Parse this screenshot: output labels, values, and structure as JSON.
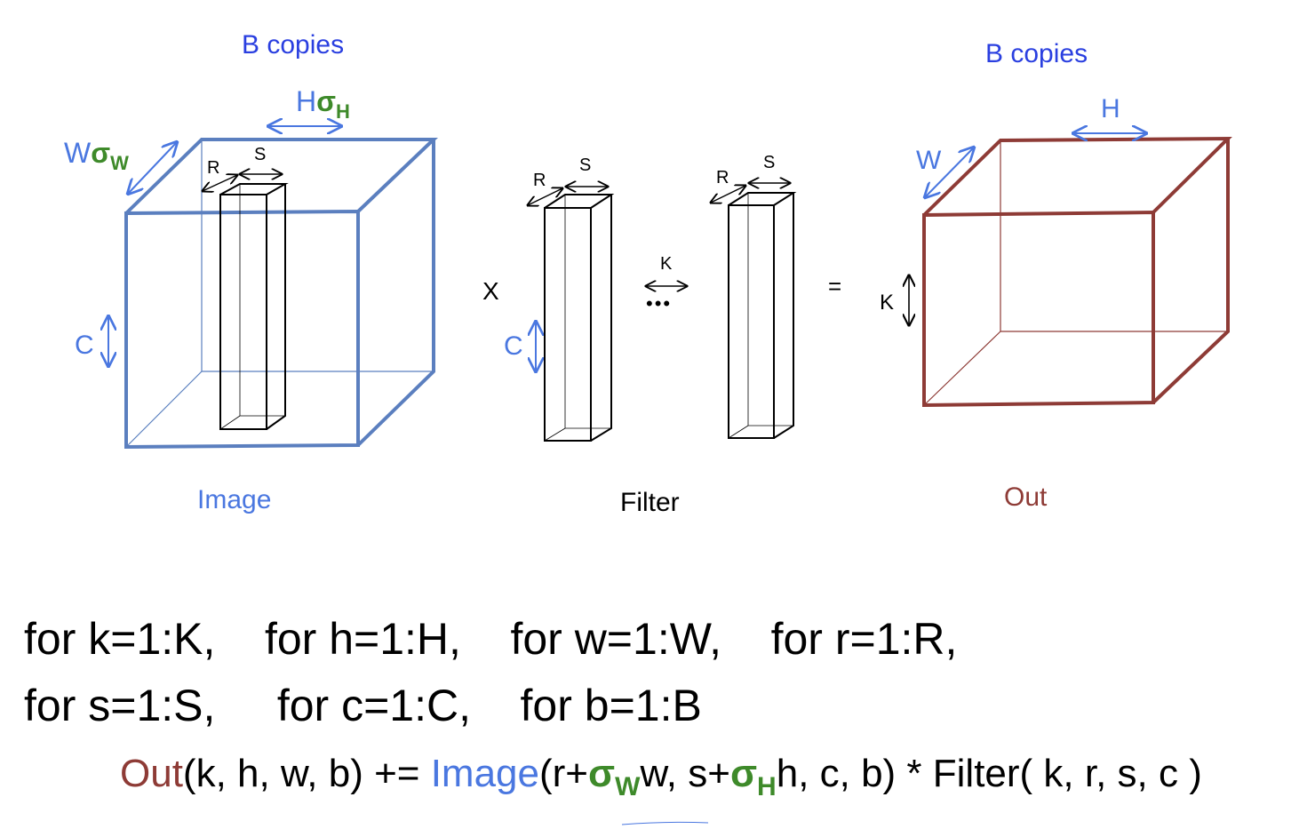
{
  "colors": {
    "image_blue": "#5b7fbf",
    "label_blue": "#4a77e0",
    "title_blue": "#2a3fe0",
    "out_red": "#8e3b36",
    "sigma_green": "#3e8a2a",
    "black": "#000000"
  },
  "image": {
    "copies_label": "B copies",
    "caption": "Image",
    "w_label": "W",
    "w_sigma": "σ",
    "w_sub": "W",
    "h_label": "H",
    "h_sigma": "σ",
    "h_sub": "H",
    "c_label": "C",
    "r_label": "R",
    "s_label": "S"
  },
  "operators": {
    "times": "X",
    "equals": "=",
    "dots": "•••"
  },
  "filter": {
    "caption": "Filter",
    "r_label": "R",
    "s_label": "S",
    "c_label": "C",
    "k_label": "K",
    "r2_label": "R",
    "s2_label": "S"
  },
  "out": {
    "copies_label": "B copies",
    "caption": "Out",
    "w_label": "W",
    "h_label": "H",
    "k_label": "K"
  },
  "code": {
    "line1": "for k=1:K,    for h=1:H,    for w=1:W,    for r=1:R,",
    "line2": "for s=1:S,     for c=1:C,    for b=1:B",
    "eq_out": "Out",
    "eq_args1": "(k, h, w, b) += ",
    "eq_image": "Image",
    "eq_args2": "(r+",
    "eq_sigma_w": "σ",
    "eq_sub_w": "W",
    "eq_args3": "w, s+",
    "eq_sigma_h": "σ",
    "eq_sub_h": "H",
    "eq_args4": "h, c, b) * Filter( k, r, s, c )"
  }
}
